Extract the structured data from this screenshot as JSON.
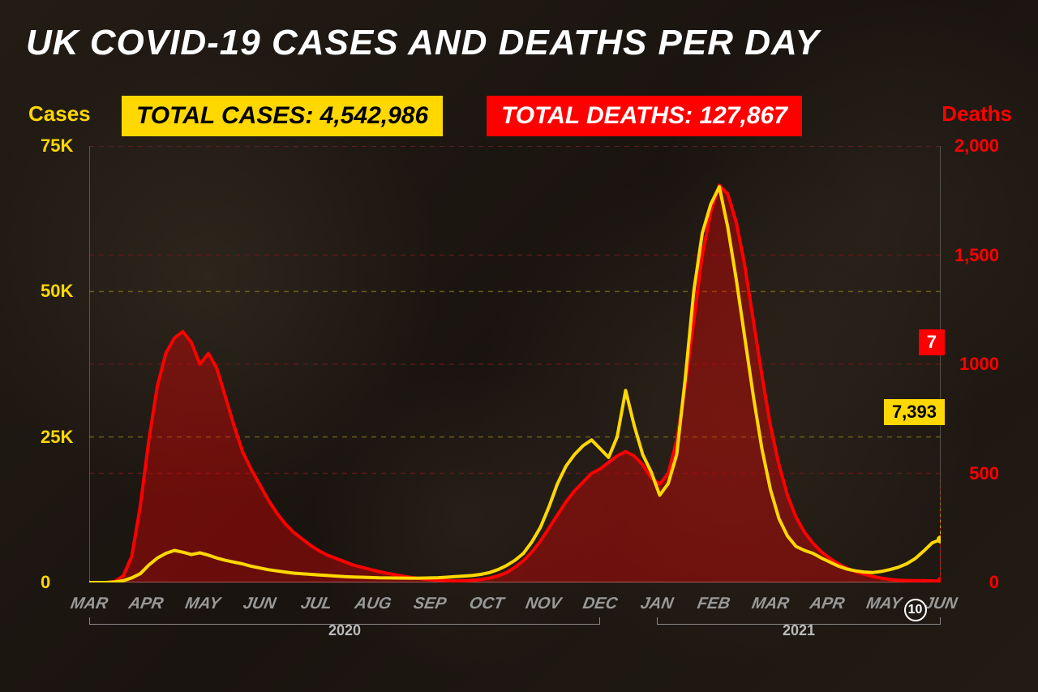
{
  "title": "UK COVID-19 CASES AND DEATHS PER DAY",
  "axis_labels": {
    "left": "Cases",
    "right": "Deaths"
  },
  "badges": {
    "cases": "TOTAL CASES: 4,542,986",
    "deaths": "TOTAL DEATHS: 127,867"
  },
  "colors": {
    "cases": "#ffd800",
    "deaths": "#ff0000",
    "background": "#1a1512",
    "grid_left": "#6b5c1a",
    "grid_right": "#5c1818",
    "axis_line": "#888888",
    "xlabel": "#999999",
    "title": "#ffffff"
  },
  "left_axis": {
    "min": 0,
    "max": 75000,
    "ticks": [
      {
        "v": 0,
        "label": "0"
      },
      {
        "v": 25000,
        "label": "25K"
      },
      {
        "v": 50000,
        "label": "50K"
      },
      {
        "v": 75000,
        "label": "75K"
      }
    ]
  },
  "right_axis": {
    "min": 0,
    "max": 2000,
    "ticks": [
      {
        "v": 0,
        "label": "0"
      },
      {
        "v": 500,
        "label": "500"
      },
      {
        "v": 1000,
        "label": "1000"
      },
      {
        "v": 1500,
        "label": "1,500"
      },
      {
        "v": 2000,
        "label": "2,000"
      }
    ]
  },
  "x_axis": {
    "months": [
      "MAR",
      "APR",
      "MAY",
      "JUN",
      "JUL",
      "AUG",
      "SEP",
      "OCT",
      "NOV",
      "DEC",
      "JAN",
      "FEB",
      "MAR",
      "APR",
      "MAY",
      "JUN"
    ],
    "year_spans": [
      {
        "label": "2020",
        "from": 0,
        "to": 9
      },
      {
        "label": "2021",
        "from": 10,
        "to": 15
      }
    ],
    "end_day": "10"
  },
  "callouts": {
    "deaths": {
      "value": "7",
      "y_value": 7
    },
    "cases": {
      "value": "7,393",
      "y_value": 7393
    }
  },
  "series": {
    "cases": [
      0,
      0,
      0,
      100,
      300,
      800,
      1500,
      3000,
      4200,
      5000,
      5500,
      5200,
      4800,
      5100,
      4700,
      4200,
      3800,
      3500,
      3200,
      2800,
      2500,
      2200,
      2000,
      1800,
      1600,
      1500,
      1400,
      1300,
      1200,
      1100,
      1000,
      950,
      900,
      850,
      800,
      780,
      760,
      750,
      740,
      750,
      780,
      820,
      900,
      1000,
      1100,
      1200,
      1400,
      1700,
      2200,
      2900,
      3800,
      5000,
      7000,
      9500,
      13000,
      17000,
      20000,
      22000,
      23500,
      24500,
      23000,
      21500,
      25000,
      33000,
      27000,
      22000,
      19000,
      15000,
      17000,
      22000,
      35000,
      50000,
      60000,
      65000,
      68000,
      61000,
      52000,
      42000,
      32000,
      23000,
      16000,
      11000,
      8000,
      6200,
      5500,
      5000,
      4200,
      3500,
      2800,
      2300,
      2000,
      1800,
      1700,
      1900,
      2200,
      2600,
      3200,
      4100,
      5400,
      6800,
      7393
    ],
    "deaths": [
      0,
      0,
      0,
      5,
      30,
      120,
      350,
      650,
      900,
      1050,
      1120,
      1150,
      1100,
      1000,
      1050,
      980,
      850,
      720,
      600,
      520,
      450,
      380,
      320,
      270,
      230,
      200,
      170,
      145,
      125,
      110,
      95,
      80,
      70,
      60,
      50,
      42,
      35,
      28,
      22,
      17,
      13,
      10,
      8,
      7,
      8,
      10,
      14,
      20,
      30,
      45,
      70,
      100,
      140,
      190,
      250,
      310,
      370,
      420,
      460,
      500,
      520,
      550,
      580,
      600,
      580,
      540,
      480,
      450,
      500,
      650,
      900,
      1200,
      1500,
      1700,
      1820,
      1780,
      1650,
      1450,
      1200,
      950,
      720,
      540,
      400,
      300,
      230,
      180,
      140,
      110,
      85,
      65,
      50,
      38,
      28,
      20,
      14,
      10,
      9,
      8,
      8,
      7,
      7
    ]
  },
  "style": {
    "title_fontsize": 44,
    "axis_label_fontsize": 26,
    "badge_fontsize": 30,
    "tick_fontsize": 22,
    "xlabel_fontsize": 20,
    "callout_fontsize": 22,
    "line_width_cases": 4,
    "line_width_deaths": 4,
    "deaths_fill_opacity": 0.35,
    "grid_dash": "6,6"
  }
}
